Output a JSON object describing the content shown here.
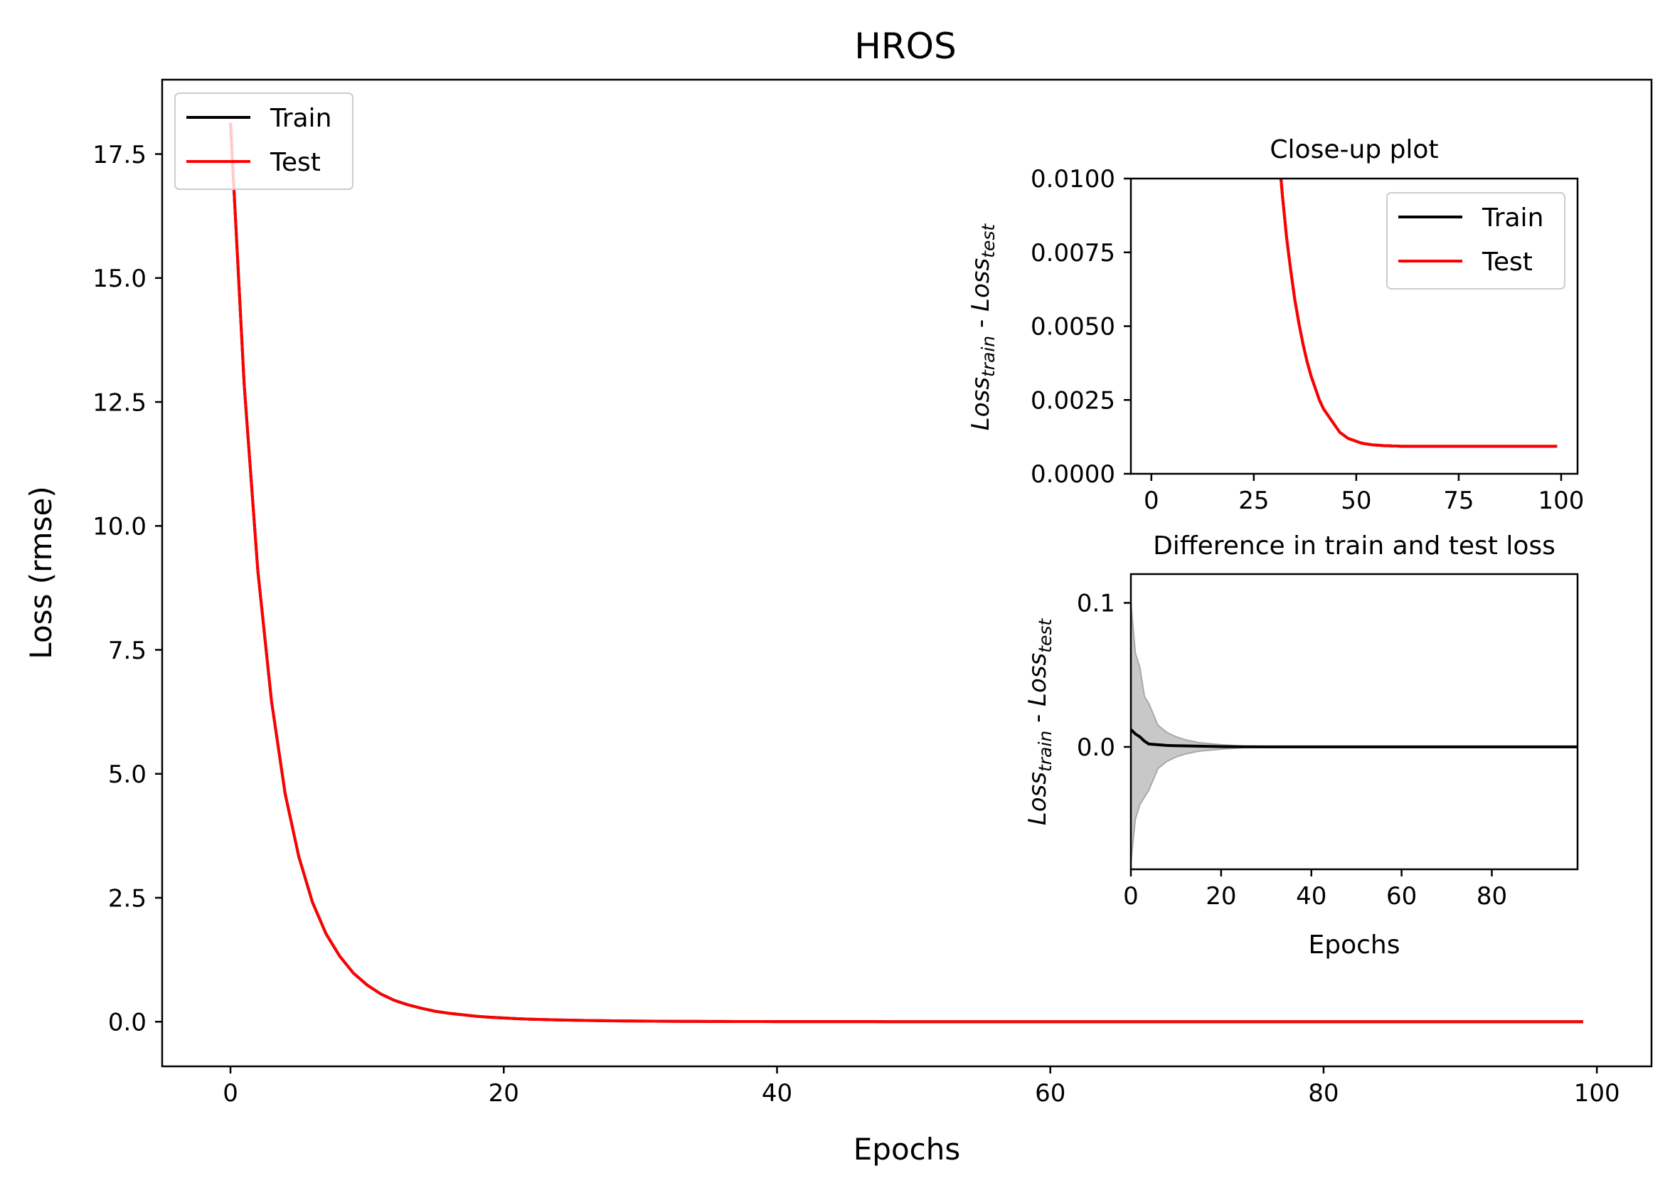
{
  "chart_data": [
    {
      "id": "main",
      "type": "line",
      "title": "HROS",
      "xlabel": "Epochs",
      "ylabel": "Loss (rmse)",
      "xlim": [
        -5,
        104
      ],
      "ylim": [
        -0.9,
        19.0
      ],
      "xticks": [
        0,
        20,
        40,
        60,
        80,
        100
      ],
      "xtick_labels": [
        "0",
        "20",
        "40",
        "60",
        "80",
        "100"
      ],
      "yticks": [
        0,
        2.5,
        5,
        7.5,
        10,
        12.5,
        15,
        17.5
      ],
      "ytick_labels": [
        "0.0",
        "2.5",
        "5.0",
        "7.5",
        "10.0",
        "12.5",
        "15.0",
        "17.5"
      ],
      "legend": {
        "placement": "top-left",
        "entries": [
          "Train",
          "Test"
        ]
      },
      "series": [
        {
          "name": "Train",
          "color": "#000000",
          "x0": 0,
          "values": [
            18.13,
            12.86,
            9.1,
            6.47,
            4.6,
            3.33,
            2.41,
            1.77,
            1.32,
            0.98,
            0.74,
            0.56,
            0.43,
            0.34,
            0.27,
            0.21,
            0.17,
            0.14,
            0.11,
            0.09,
            0.075,
            0.062,
            0.051,
            0.043,
            0.036,
            0.03,
            0.025,
            0.021,
            0.018,
            0.015,
            0.013,
            0.011,
            0.0094,
            0.008,
            0.0069,
            0.0059,
            0.0051,
            0.0044,
            0.0038,
            0.0033,
            0.0029,
            0.0025,
            0.0022,
            0.002,
            0.0018,
            0.0016,
            0.0014,
            0.0013,
            0.0012,
            0.00115,
            0.0011,
            0.00105,
            0.00102,
            0.001,
            0.00098,
            0.00097,
            0.00096,
            0.00095,
            0.00095,
            0.00094,
            0.00094,
            0.00093,
            0.00093,
            0.00093,
            0.00093,
            0.00093,
            0.00093,
            0.00093,
            0.00093,
            0.00093,
            0.00093,
            0.00093,
            0.00093,
            0.00093,
            0.00093,
            0.00093,
            0.00093,
            0.00093,
            0.00093,
            0.00093,
            0.00093,
            0.00093,
            0.00093,
            0.00093,
            0.00093,
            0.00093,
            0.00093,
            0.00093,
            0.00093,
            0.00093,
            0.00093,
            0.00093,
            0.00093,
            0.00093,
            0.00093,
            0.00093,
            0.00093,
            0.00093,
            0.00093,
            0.00093
          ]
        },
        {
          "name": "Test",
          "color": "#ff0000",
          "x0": 0,
          "values": [
            18.13,
            12.86,
            9.1,
            6.47,
            4.6,
            3.33,
            2.41,
            1.77,
            1.32,
            0.98,
            0.74,
            0.56,
            0.43,
            0.34,
            0.27,
            0.21,
            0.17,
            0.14,
            0.11,
            0.09,
            0.075,
            0.062,
            0.051,
            0.043,
            0.036,
            0.03,
            0.025,
            0.021,
            0.018,
            0.015,
            0.013,
            0.011,
            0.0094,
            0.008,
            0.0069,
            0.0059,
            0.0051,
            0.0044,
            0.0038,
            0.0033,
            0.0029,
            0.0025,
            0.0022,
            0.002,
            0.0018,
            0.0016,
            0.0014,
            0.0013,
            0.0012,
            0.00115,
            0.0011,
            0.00105,
            0.00102,
            0.001,
            0.00098,
            0.00097,
            0.00096,
            0.00095,
            0.00095,
            0.00094,
            0.00094,
            0.00093,
            0.00093,
            0.00093,
            0.00093,
            0.00093,
            0.00093,
            0.00093,
            0.00093,
            0.00093,
            0.00093,
            0.00093,
            0.00093,
            0.00093,
            0.00093,
            0.00093,
            0.00093,
            0.00093,
            0.00093,
            0.00093,
            0.00093,
            0.00093,
            0.00093,
            0.00093,
            0.00093,
            0.00093,
            0.00093,
            0.00093,
            0.00093,
            0.00093,
            0.00093,
            0.00093,
            0.00093,
            0.00093,
            0.00093,
            0.00093,
            0.00093,
            0.00093,
            0.00093,
            0.00093
          ]
        }
      ]
    },
    {
      "id": "closeup",
      "type": "line",
      "title": "Close-up plot",
      "ylabel_base": "Loss",
      "ylabel_sub1": "train",
      "ylabel_mid": " - ",
      "ylabel_sub2": "test",
      "xlim": [
        -5,
        104
      ],
      "ylim": [
        0,
        0.01
      ],
      "clip": true,
      "xticks": [
        0,
        25,
        50,
        75,
        100
      ],
      "xtick_labels": [
        "0",
        "25",
        "50",
        "75",
        "100"
      ],
      "yticks": [
        0,
        0.0025,
        0.005,
        0.0075,
        0.01
      ],
      "ytick_labels": [
        "0.0000",
        "0.0025",
        "0.0050",
        "0.0075",
        "0.0100"
      ],
      "legend": {
        "placement": "top-right",
        "entries": [
          "Train",
          "Test"
        ]
      },
      "series_from": "main"
    },
    {
      "id": "difference",
      "type": "area",
      "title": "Difference in train and test loss",
      "xlabel": "Epochs",
      "ylabel_base": "Loss",
      "ylabel_sub1": "train",
      "ylabel_mid": " - ",
      "ylabel_sub2": "test",
      "xlim": [
        0,
        99
      ],
      "ylim": [
        -0.085,
        0.12
      ],
      "xticks": [
        0,
        20,
        40,
        60,
        80
      ],
      "xtick_labels": [
        "0",
        "20",
        "40",
        "60",
        "80"
      ],
      "yticks": [
        0,
        0.1
      ],
      "ytick_labels": [
        "0.0",
        "0.1"
      ],
      "band_color": "#c8c8c8",
      "line_color": "#000000",
      "mean": {
        "x": [
          0,
          1,
          2,
          3,
          4,
          6,
          8,
          10,
          15,
          20,
          25,
          30,
          99
        ],
        "y": [
          0.012,
          0.009,
          0.007,
          0.004,
          0.002,
          0.0015,
          0.001,
          0.0008,
          0.0005,
          0.0002,
          0.0001,
          0.0,
          0.0
        ]
      },
      "band_upper": {
        "x": [
          0,
          1,
          2,
          3,
          4,
          6,
          8,
          10,
          12,
          15,
          20,
          25,
          30,
          99
        ],
        "y": [
          0.1,
          0.065,
          0.055,
          0.035,
          0.03,
          0.015,
          0.01,
          0.007,
          0.005,
          0.003,
          0.0015,
          0.0005,
          0.0,
          0.0
        ]
      },
      "band_lower": {
        "x": [
          0,
          1,
          2,
          3,
          4,
          6,
          8,
          10,
          12,
          15,
          20,
          25,
          30,
          99
        ],
        "y": [
          -0.08,
          -0.05,
          -0.04,
          -0.035,
          -0.03,
          -0.015,
          -0.01,
          -0.007,
          -0.005,
          -0.003,
          -0.0015,
          -0.0005,
          0.0,
          0.0
        ]
      }
    }
  ]
}
